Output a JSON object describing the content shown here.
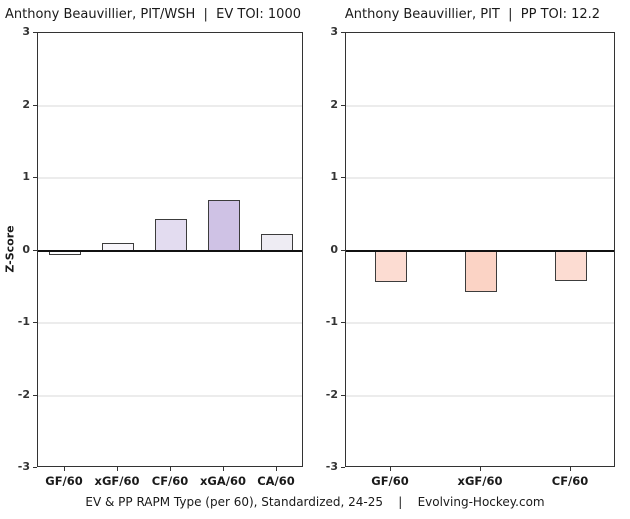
{
  "page": {
    "footer": "EV & PP RAPM Type (per 60), Standardized, 24-25    |    Evolving-Hockey.com",
    "background": "#ffffff"
  },
  "colors": {
    "gridline": "#ececec",
    "zero_line": "#111111",
    "panel_border": "#333333",
    "bar_border": "#3c3c3c",
    "axis_text": "#333333",
    "positive_accent": "#cfc2e5",
    "negative_accent": "#fbd3c5"
  },
  "chart_data": [
    {
      "type": "bar",
      "title": "Anthony Beauvillier, PIT/WSH  |  EV TOI: 1000",
      "ylabel": "Z-Score",
      "ylim": [
        -3,
        3
      ],
      "yticks": [
        3,
        2,
        1,
        0,
        -1,
        -2,
        -3
      ],
      "grid": "major-horizontal",
      "legend": "none",
      "categories": [
        "GF/60",
        "xGF/60",
        "CF/60",
        "xGA/60",
        "CA/60"
      ],
      "values": [
        -0.05,
        0.11,
        0.44,
        0.7,
        0.23
      ],
      "bar_colors": [
        "#fdfdfe",
        "#f8f6fb",
        "#e3dcf0",
        "#cfc2e5",
        "#eeecf3"
      ]
    },
    {
      "type": "bar",
      "title": "Anthony Beauvillier, PIT  |  PP TOI: 12.2",
      "ylabel": "",
      "ylim": [
        -3,
        3
      ],
      "yticks": [
        3,
        2,
        1,
        0,
        -1,
        -2,
        -3
      ],
      "grid": "major-horizontal",
      "legend": "none",
      "categories": [
        "GF/60",
        "xGF/60",
        "CF/60"
      ],
      "values": [
        -0.43,
        -0.56,
        -0.41
      ],
      "bar_colors": [
        "#fcdcd2",
        "#fbd3c5",
        "#fcdcd2"
      ]
    }
  ]
}
